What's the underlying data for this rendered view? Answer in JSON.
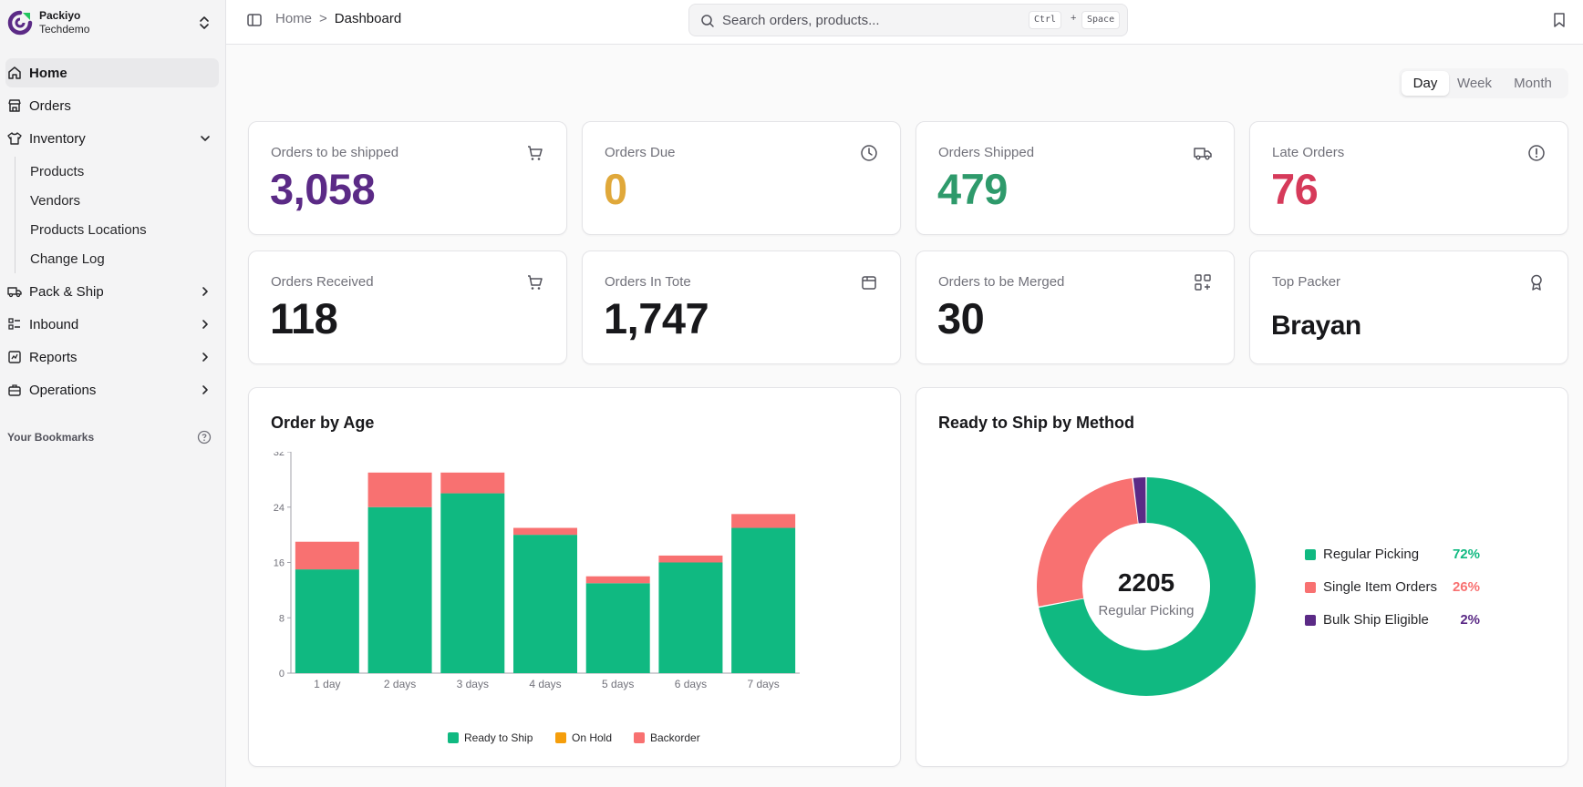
{
  "brand": {
    "name": "Packiyo",
    "subtitle": "Techdemo"
  },
  "sidebar": {
    "items": [
      {
        "label": "Home"
      },
      {
        "label": "Orders"
      },
      {
        "label": "Inventory",
        "children": [
          "Products",
          "Vendors",
          "Products Locations",
          "Change Log"
        ]
      },
      {
        "label": "Pack & Ship"
      },
      {
        "label": "Inbound"
      },
      {
        "label": "Reports"
      },
      {
        "label": "Operations"
      }
    ],
    "bookmarks_label": "Your Bookmarks"
  },
  "header": {
    "breadcrumb_home": "Home",
    "breadcrumb_sep": ">",
    "breadcrumb_current": "Dashboard",
    "search_placeholder": "Search orders, products...",
    "shortcut_key1": "Ctrl",
    "shortcut_plus": "+",
    "shortcut_key2": "Space"
  },
  "period": {
    "options": [
      "Day",
      "Week",
      "Month"
    ],
    "selected": "Day"
  },
  "stats": [
    {
      "label": "Orders to be shipped",
      "value": "3,058",
      "color": "#5b2a86",
      "icon": "cart-icon"
    },
    {
      "label": "Orders Due",
      "value": "0",
      "color": "#e0a83a",
      "icon": "clock-icon"
    },
    {
      "label": "Orders Shipped",
      "value": "479",
      "color": "#2e9a6b",
      "icon": "truck-icon"
    },
    {
      "label": "Late Orders",
      "value": "76",
      "color": "#d63a5a",
      "icon": "alert-circle-icon"
    },
    {
      "label": "Orders Received",
      "value": "118",
      "color": "#18181b",
      "icon": "cart-icon"
    },
    {
      "label": "Orders In Tote",
      "value": "1,747",
      "color": "#18181b",
      "icon": "tote-icon"
    },
    {
      "label": "Orders to be Merged",
      "value": "30",
      "color": "#18181b",
      "icon": "merge-icon"
    },
    {
      "label": "Top Packer",
      "value": "Brayan",
      "color": "#18181b",
      "icon": "award-icon"
    }
  ],
  "order_by_age": {
    "title": "Order by Age",
    "chart_data": {
      "type": "bar",
      "stacked": true,
      "categories": [
        "1 day",
        "2 days",
        "3 days",
        "4 days",
        "5 days",
        "6 days",
        "7 days"
      ],
      "series": [
        {
          "name": "Ready to Ship",
          "color": "#10b981",
          "values": [
            15,
            24,
            26,
            20,
            13,
            16,
            21
          ]
        },
        {
          "name": "On Hold",
          "color": "#f59e0b",
          "values": [
            0,
            0,
            0,
            0,
            0,
            0,
            0
          ]
        },
        {
          "name": "Backorder",
          "color": "#f87171",
          "values": [
            4,
            5,
            3,
            1,
            1,
            1,
            2
          ]
        }
      ],
      "ylim": [
        0,
        32
      ],
      "yticks": [
        0,
        8,
        16,
        24,
        32
      ],
      "legend_position": "bottom"
    }
  },
  "ready_to_ship": {
    "title": "Ready to Ship by Method",
    "center_value": "2205",
    "center_label": "Regular Picking",
    "chart_data": {
      "type": "pie",
      "donut": true,
      "slices": [
        {
          "name": "Regular Picking",
          "value": 72,
          "label": "72%",
          "color": "#10b981"
        },
        {
          "name": "Single Item Orders",
          "value": 26,
          "label": "26%",
          "color": "#f87171"
        },
        {
          "name": "Bulk Ship Eligible",
          "value": 2,
          "label": "2%",
          "color": "#5b2a86"
        }
      ],
      "legend_position": "right"
    }
  }
}
